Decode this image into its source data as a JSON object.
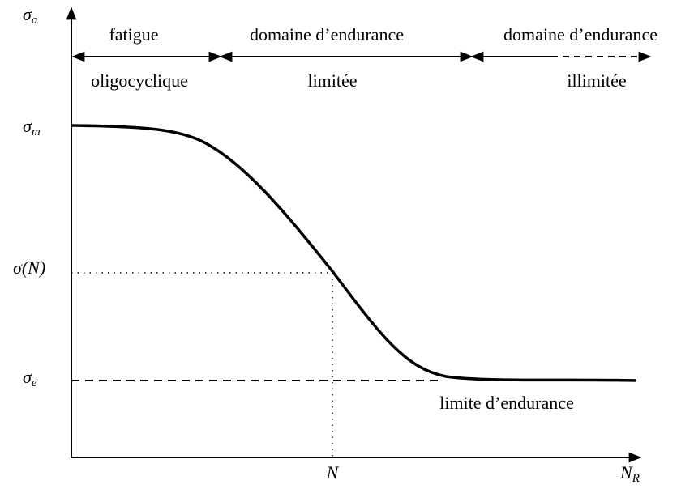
{
  "axes": {
    "y": {
      "symbol": "σ",
      "subscript": "a"
    },
    "x": {
      "symbol": "N",
      "subscript": "R"
    }
  },
  "levels": {
    "max": {
      "symbol": "σ",
      "subscript": "m"
    },
    "at_n": {
      "label": "σ(N)"
    },
    "endurance": {
      "symbol": "σ",
      "subscript": "e"
    }
  },
  "n_label": "N",
  "regions": [
    {
      "top": "fatigue",
      "bottom": "oligocyclique"
    },
    {
      "top": "domaine d’endurance",
      "bottom": "limitée"
    },
    {
      "top": "domaine d’endurance",
      "bottom": "illimitée"
    }
  ],
  "endurance_limit_label": "limite d’endurance"
}
